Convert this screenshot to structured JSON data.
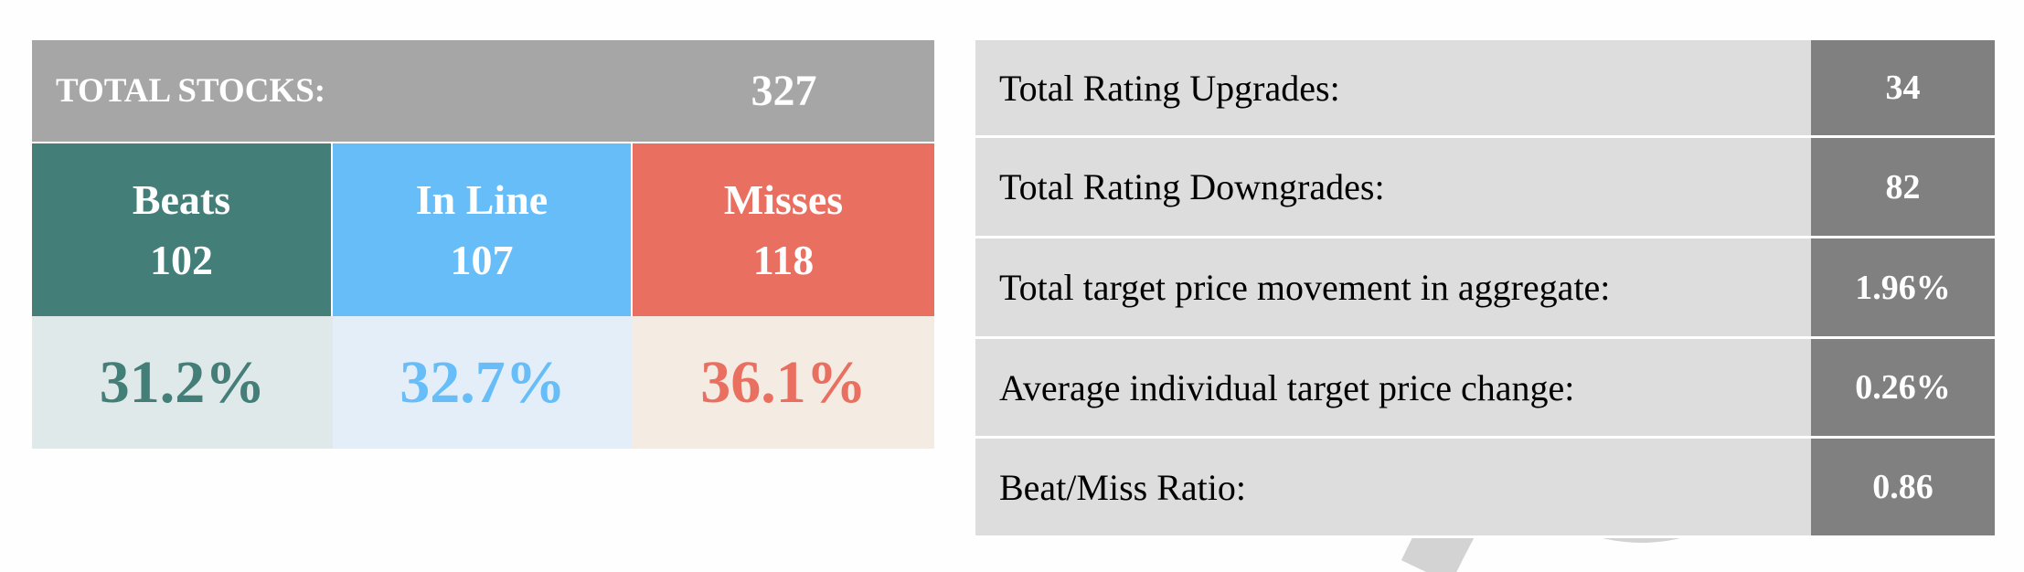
{
  "left_table": {
    "header": {
      "label": "TOTAL STOCKS:",
      "value": "327"
    },
    "columns": [
      {
        "name": "Beats",
        "count": "102",
        "percent": "31.2%"
      },
      {
        "name": "In Line",
        "count": "107",
        "percent": "32.7%"
      },
      {
        "name": "Misses",
        "count": "118",
        "percent": "36.1%"
      }
    ]
  },
  "right_table": {
    "rows": [
      [
        "Total Rating Upgrades:",
        "34"
      ],
      [
        "Total Rating Downgrades:",
        "82"
      ],
      [
        "Total target price movement in aggregate:",
        "1.96%"
      ],
      [
        "Average individual target price change:",
        "0.26%"
      ],
      [
        "Beat/Miss Ratio:",
        "0.86"
      ]
    ]
  }
}
